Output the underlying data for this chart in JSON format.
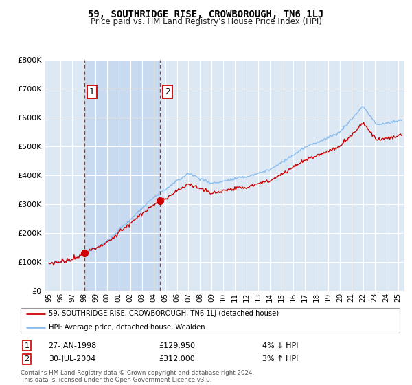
{
  "title": "59, SOUTHRIDGE RISE, CROWBOROUGH, TN6 1LJ",
  "subtitle": "Price paid vs. HM Land Registry's House Price Index (HPI)",
  "legend_label_red": "59, SOUTHRIDGE RISE, CROWBOROUGH, TN6 1LJ (detached house)",
  "legend_label_blue": "HPI: Average price, detached house, Wealden",
  "table_rows": [
    {
      "num": "1",
      "date": "27-JAN-1998",
      "price": "£129,950",
      "hpi": "4% ↓ HPI"
    },
    {
      "num": "2",
      "date": "30-JUL-2004",
      "price": "£312,000",
      "hpi": "3% ↑ HPI"
    }
  ],
  "footer": "Contains HM Land Registry data © Crown copyright and database right 2024.\nThis data is licensed under the Open Government Licence v3.0.",
  "sale1_x": 1998.07,
  "sale1_y": 129950,
  "sale2_x": 2004.58,
  "sale2_y": 312000,
  "ylim": [
    0,
    800000
  ],
  "xlim_left": 1994.7,
  "xlim_right": 2025.5,
  "hpi_color": "#88bbee",
  "sale_color": "#cc0000",
  "dashed_color": "#cc0000",
  "background_color": "#ffffff",
  "plot_bg_color": "#dde8f5",
  "shaded_region_color": "#c8daf0"
}
